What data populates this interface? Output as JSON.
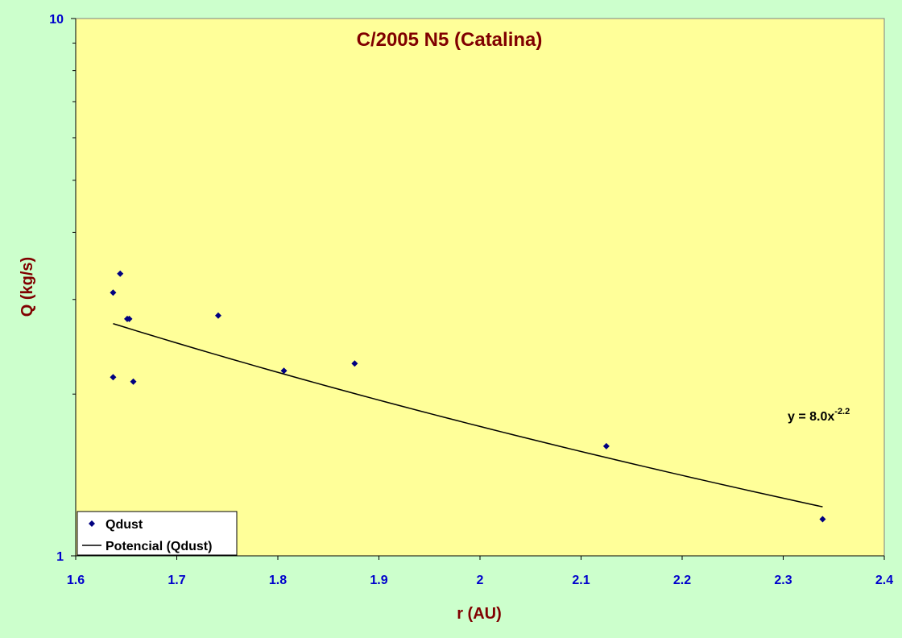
{
  "chart_data": {
    "type": "scatter",
    "title": "C/2005 N5 (Catalina)",
    "xlabel": "r (AU)",
    "ylabel": "Q (kg/s)",
    "xlim": [
      1.6,
      2.4
    ],
    "ylim": [
      1,
      10
    ],
    "yscale": "log",
    "x_ticks": [
      "1.6",
      "1.7",
      "1.8",
      "1.9",
      "2",
      "2.1",
      "2.2",
      "2.3",
      "2.4"
    ],
    "y_ticks": [
      "1",
      "10"
    ],
    "grid": false,
    "legend_position": "bottom-left",
    "series": [
      {
        "name": "Qdust",
        "marker": "diamond",
        "color": "#000080",
        "points": [
          {
            "x": 1.637,
            "y": 3.09
          },
          {
            "x": 1.644,
            "y": 3.35
          },
          {
            "x": 1.651,
            "y": 2.76
          },
          {
            "x": 1.653,
            "y": 2.76
          },
          {
            "x": 1.637,
            "y": 2.15
          },
          {
            "x": 1.657,
            "y": 2.11
          },
          {
            "x": 1.741,
            "y": 2.8
          },
          {
            "x": 1.806,
            "y": 2.21
          },
          {
            "x": 1.876,
            "y": 2.28
          },
          {
            "x": 2.125,
            "y": 1.6
          },
          {
            "x": 2.339,
            "y": 1.17
          }
        ]
      }
    ],
    "trendline": {
      "name": "Potencial (Qdust)",
      "type": "power",
      "coefficient": 8.0,
      "exponent": -2.2,
      "x_range": [
        1.637,
        2.339
      ],
      "color": "#000000",
      "equation_base": "y = 8.0x",
      "equation_exp": "-2.2"
    },
    "colors": {
      "plot_background": "#ffff99",
      "chart_background": "#ccffcc",
      "title_color": "#800000",
      "tick_color": "#0000cc"
    }
  }
}
